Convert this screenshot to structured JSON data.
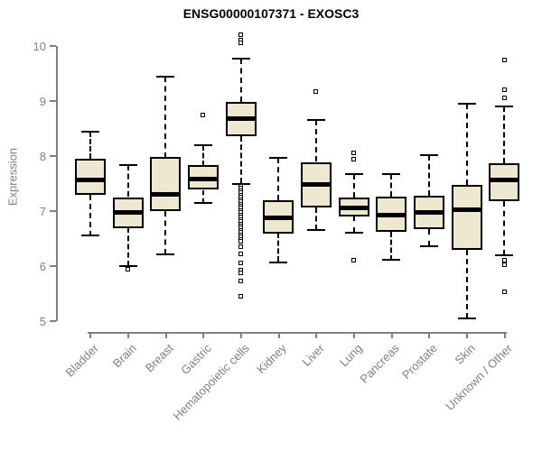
{
  "title": "ENSG00000107371 - EXOSC3",
  "y_axis": {
    "label": "Expression",
    "ticks": [
      "5",
      "6",
      "7",
      "8",
      "9",
      "10"
    ],
    "min": 5,
    "max": 10
  },
  "colors": {
    "box_fill": "#EEE8D1",
    "box_border": "#000000",
    "median": "#000000",
    "axis_gray": "#808080",
    "title_color": "#000000",
    "background": "#FFFFFF"
  },
  "chart_data": {
    "type": "boxplot",
    "title": "ENSG00000107371 - EXOSC3",
    "xlabel": "",
    "ylabel": "Expression",
    "ylim": [
      5,
      10
    ],
    "grid": false,
    "legend": "none",
    "categories": [
      "Bladder",
      "Brain",
      "Breast",
      "Gastric",
      "Hematopoietic cells",
      "Kidney",
      "Liver",
      "Lung",
      "Pancreas",
      "Prostate",
      "Skin",
      "Unknown / Other"
    ],
    "series": [
      {
        "name": "Bladder",
        "whisker_low": 6.55,
        "q1": 7.3,
        "median": 7.57,
        "q3": 7.95,
        "whisker_high": 8.45,
        "outliers": []
      },
      {
        "name": "Brain",
        "whisker_low": 6.0,
        "q1": 6.7,
        "median": 6.98,
        "q3": 7.25,
        "whisker_high": 7.83,
        "outliers": [
          5.95
        ]
      },
      {
        "name": "Breast",
        "whisker_low": 6.22,
        "q1": 7.0,
        "median": 7.3,
        "q3": 7.98,
        "whisker_high": 9.45,
        "outliers": []
      },
      {
        "name": "Gastric",
        "whisker_low": 7.15,
        "q1": 7.38,
        "median": 7.59,
        "q3": 7.83,
        "whisker_high": 8.2,
        "outliers": [
          8.74
        ]
      },
      {
        "name": "Hematopoietic cells",
        "whisker_low": 7.5,
        "q1": 8.36,
        "median": 8.68,
        "q3": 8.99,
        "whisker_high": 9.77,
        "outliers": [
          10.2,
          10.1,
          10.05,
          7.45,
          7.41,
          7.37,
          7.33,
          7.29,
          7.25,
          7.21,
          7.17,
          7.13,
          7.09,
          7.05,
          7.01,
          6.97,
          6.93,
          6.89,
          6.85,
          6.81,
          6.77,
          6.73,
          6.69,
          6.65,
          6.61,
          6.57,
          6.53,
          6.49,
          6.45,
          6.36,
          6.22,
          6.05,
          5.93,
          5.88,
          5.73,
          5.45
        ]
      },
      {
        "name": "Kidney",
        "whisker_low": 6.07,
        "q1": 6.6,
        "median": 6.87,
        "q3": 7.2,
        "whisker_high": 7.97,
        "outliers": []
      },
      {
        "name": "Liver",
        "whisker_low": 6.66,
        "q1": 7.07,
        "median": 7.49,
        "q3": 7.89,
        "whisker_high": 8.65,
        "outliers": [
          9.17
        ]
      },
      {
        "name": "Lung",
        "whisker_low": 6.6,
        "q1": 6.91,
        "median": 7.05,
        "q3": 7.25,
        "whisker_high": 7.67,
        "outliers": [
          8.05,
          7.94,
          6.11
        ]
      },
      {
        "name": "Pancreas",
        "whisker_low": 6.11,
        "q1": 6.63,
        "median": 6.93,
        "q3": 7.27,
        "whisker_high": 7.68,
        "outliers": []
      },
      {
        "name": "Prostate",
        "whisker_low": 6.36,
        "q1": 6.67,
        "median": 6.97,
        "q3": 7.28,
        "whisker_high": 8.02,
        "outliers": []
      },
      {
        "name": "Skin",
        "whisker_low": 5.05,
        "q1": 6.3,
        "median": 7.02,
        "q3": 7.48,
        "whisker_high": 8.95,
        "outliers": []
      },
      {
        "name": "Unknown / Other",
        "whisker_low": 6.2,
        "q1": 7.18,
        "median": 7.56,
        "q3": 7.87,
        "whisker_high": 8.9,
        "outliers": [
          9.74,
          9.2,
          9.06,
          6.11,
          6.02,
          5.54
        ]
      }
    ]
  }
}
